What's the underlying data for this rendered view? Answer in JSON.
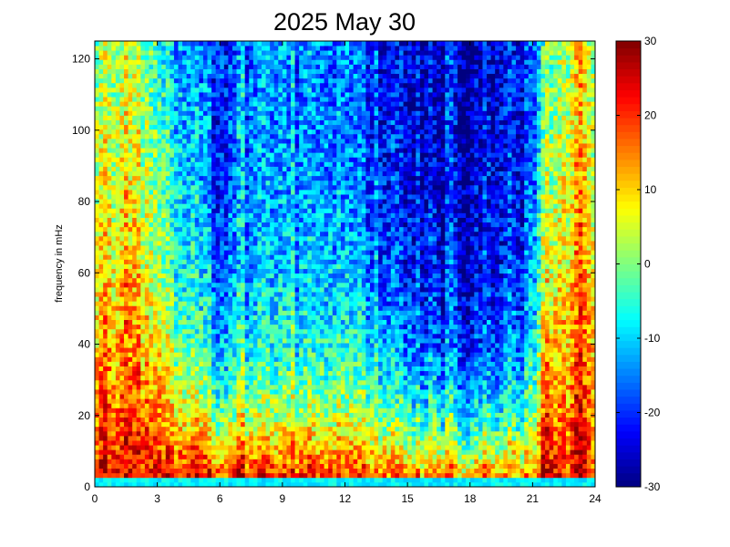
{
  "chart_data": {
    "type": "heatmap",
    "title": "2025 May 30",
    "xlabel": "",
    "ylabel": "frequency in mHz",
    "x_range": [
      0,
      24
    ],
    "y_range": [
      0,
      125
    ],
    "x_ticks": [
      0,
      3,
      6,
      9,
      12,
      15,
      18,
      21,
      24
    ],
    "y_ticks": [
      0,
      20,
      40,
      60,
      80,
      100,
      120
    ],
    "colorbar": {
      "range": [
        -30,
        30
      ],
      "ticks": [
        -30,
        -20,
        -10,
        0,
        10,
        20,
        30
      ],
      "colormap": "jet"
    },
    "grid": false,
    "grid_columns": 120,
    "grid_rows": 96,
    "profile": {
      "hours": [
        0,
        2,
        4,
        6,
        8,
        10,
        12,
        14,
        16,
        17.5,
        19,
        20.5,
        21.5,
        22.5,
        24
      ],
      "high_freq_level": [
        -5,
        0,
        -12,
        -20,
        -16,
        -16,
        -18,
        -22,
        -25,
        -26,
        -26,
        -24,
        -12,
        0,
        0
      ],
      "level_at_0": [
        22,
        26,
        26,
        26,
        24,
        24,
        22,
        22,
        20,
        18,
        18,
        18,
        20,
        22,
        22
      ],
      "decay_scale_mhz": [
        80,
        75,
        35,
        25,
        25,
        28,
        30,
        30,
        25,
        22,
        22,
        22,
        45,
        70,
        75
      ]
    },
    "bright_vertical_streak_hours": [
      1.5,
      5,
      7,
      9.5,
      13.5,
      17,
      18.8,
      20,
      21.6,
      23.2
    ],
    "low_frequency_band_mhz": [
      0,
      3
    ],
    "low_frequency_band_level": -8
  }
}
